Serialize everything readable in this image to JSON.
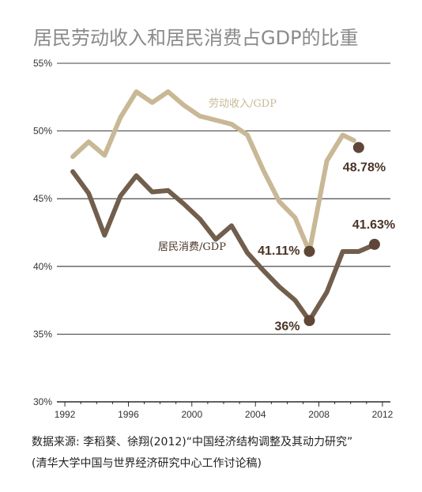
{
  "title": "居民劳动收入和居民消费占GDP的比重",
  "source": {
    "line1": "数据来源: 李稻葵、徐翔(2012)“中国经济结构调整及其动力研究”",
    "line2": "(清华大学中国与世界经济研究中心工作讨论稿)"
  },
  "colors": {
    "labor": "#c9b896",
    "consumption": "#725e4c",
    "marker": "#5f4636",
    "label_text": "#4a3426",
    "grid": "#000000"
  },
  "chart_data": {
    "type": "line",
    "title": "居民劳动收入和居民消费占GDP的比重",
    "xlabel": "",
    "ylabel": "",
    "xlim": [
      1991.5,
      2012.5
    ],
    "ylim": [
      30,
      55
    ],
    "yticks": [
      30,
      35,
      40,
      45,
      50,
      55
    ],
    "ytick_labels": [
      "30%",
      "35%",
      "40%",
      "45%",
      "50%",
      "55%"
    ],
    "xticks": [
      1992,
      1996,
      2000,
      2004,
      2008,
      2012
    ],
    "xtick_labels": [
      "1992",
      "1996",
      "2000",
      "2004",
      "2008",
      "2012"
    ],
    "grid": "horizontal",
    "series": [
      {
        "name": "劳动收入/GDP",
        "color": "#c9b896",
        "x": [
          1992.5,
          1993.5,
          1994.5,
          1995.5,
          1996.5,
          1997.5,
          1998.5,
          1999.5,
          2000.5,
          2001.5,
          2002.5,
          2003.5,
          2004.5,
          2005.5,
          2006.5,
          2007.4,
          2008.5,
          2009.5,
          2010.2
        ],
        "y": [
          48.1,
          49.2,
          48.2,
          51.0,
          52.9,
          52.1,
          52.9,
          51.9,
          51.1,
          50.8,
          50.5,
          49.7,
          47.1,
          44.8,
          43.6,
          41.1,
          47.8,
          49.7,
          49.3
        ]
      },
      {
        "name": "居民消费/GDP",
        "color": "#725e4c",
        "x": [
          1992.5,
          1993.5,
          1994.5,
          1995.5,
          1996.5,
          1997.5,
          1998.5,
          1999.5,
          2000.5,
          2001.5,
          2002.5,
          2003.5,
          2004.5,
          2005.5,
          2006.5,
          2007.4,
          2008.5,
          2009.5,
          2010.5,
          2011.5
        ],
        "y": [
          47.0,
          45.4,
          42.3,
          45.2,
          46.7,
          45.5,
          45.6,
          44.6,
          43.5,
          42.0,
          43.0,
          41.0,
          39.7,
          38.5,
          37.5,
          36.0,
          38.1,
          41.1,
          41.1,
          41.6
        ]
      }
    ],
    "markers": [
      {
        "x": 2010.5,
        "y": 48.78,
        "label": "48.78%"
      },
      {
        "x": 2007.4,
        "y": 41.11,
        "label": "41.11%"
      },
      {
        "x": 2007.4,
        "y": 36.0,
        "label": "36%"
      },
      {
        "x": 2011.5,
        "y": 41.63,
        "label": "41.63%"
      }
    ]
  }
}
